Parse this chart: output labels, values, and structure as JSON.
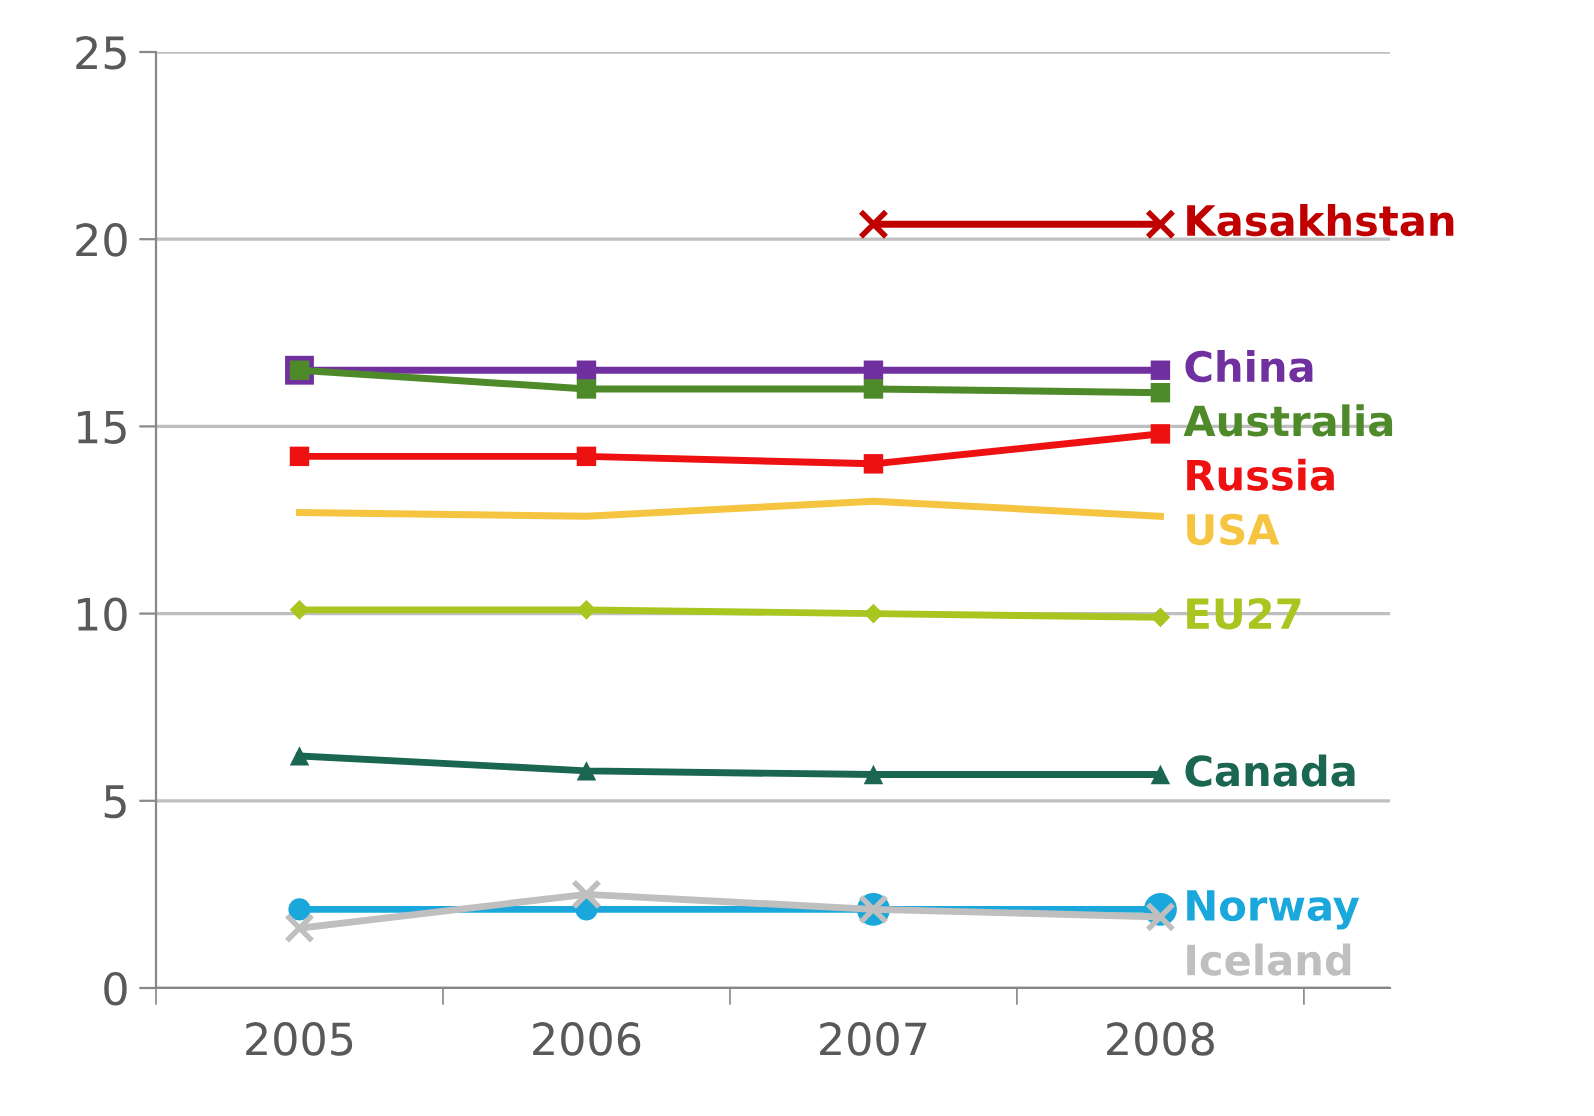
{
  "chart_data": {
    "type": "line",
    "categories": [
      "2005",
      "2006",
      "2007",
      "2008"
    ],
    "series": [
      {
        "name": "Kasakhstan",
        "color": "#c00000",
        "marker": "cross",
        "values": [
          null,
          null,
          20.4,
          20.4
        ]
      },
      {
        "name": "China",
        "color": "#7030a0",
        "marker": "square",
        "values": [
          16.5,
          16.5,
          16.5,
          16.5
        ]
      },
      {
        "name": "Australia",
        "color": "#4f8a2a",
        "marker": "square",
        "values": [
          16.5,
          16.0,
          16.0,
          15.9
        ]
      },
      {
        "name": "Russia",
        "color": "#ee1111",
        "marker": "square",
        "values": [
          14.2,
          14.2,
          14.0,
          14.8
        ]
      },
      {
        "name": "USA",
        "color": "#f5c542",
        "marker": "none",
        "values": [
          12.7,
          12.6,
          13.0,
          12.6
        ]
      },
      {
        "name": "EU27",
        "color": "#a8c520",
        "marker": "diamond",
        "values": [
          10.1,
          10.1,
          10.0,
          9.9
        ]
      },
      {
        "name": "Canada",
        "color": "#1a6650",
        "marker": "triangle",
        "values": [
          6.2,
          5.8,
          5.7,
          5.7
        ]
      },
      {
        "name": "Norway",
        "color": "#1aa7db",
        "marker": "circle",
        "values": [
          2.1,
          2.1,
          2.1,
          2.1
        ]
      },
      {
        "name": "Iceland",
        "color": "#bfbfbf",
        "marker": "cross",
        "values": [
          1.6,
          2.5,
          2.1,
          1.9
        ]
      }
    ],
    "ylim": [
      0,
      25
    ],
    "yticks": [
      0,
      5,
      10,
      15,
      20,
      25
    ],
    "grid": "y",
    "legend": false
  }
}
